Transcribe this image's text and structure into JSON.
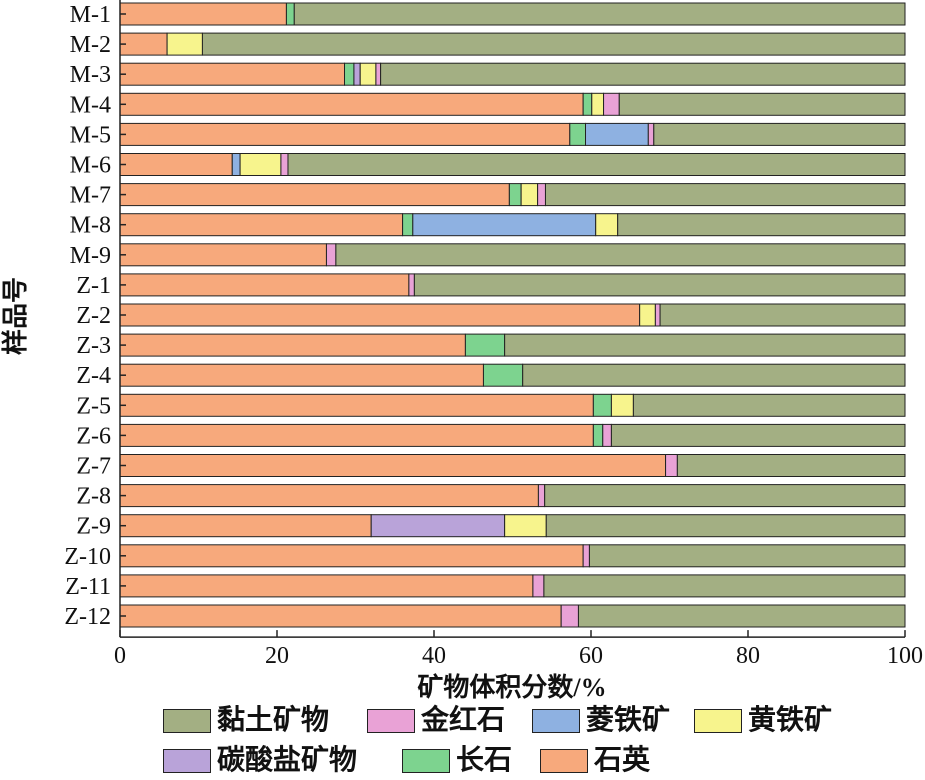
{
  "chart_data": {
    "type": "bar",
    "orientation": "horizontal",
    "stacked": true,
    "xlabel": "矿物体积分数/%",
    "ylabel": "样品号",
    "xlim": [
      0,
      100
    ],
    "xticks": [
      0,
      20,
      40,
      60,
      80,
      100
    ],
    "categories": [
      "M-1",
      "M-2",
      "M-3",
      "M-4",
      "M-5",
      "M-6",
      "M-7",
      "M-8",
      "M-9",
      "Z-1",
      "Z-2",
      "Z-3",
      "Z-4",
      "Z-5",
      "Z-6",
      "Z-7",
      "Z-8",
      "Z-9",
      "Z-10",
      "Z-11",
      "Z-12"
    ],
    "series": [
      {
        "name": "石英",
        "color": "#F7A97C",
        "values": [
          21.2,
          6.0,
          28.6,
          59.0,
          57.3,
          14.3,
          49.6,
          36.0,
          26.3,
          36.8,
          66.2,
          44.0,
          46.3,
          60.3,
          60.3,
          69.5,
          53.3,
          32.0,
          59.0,
          52.6,
          56.2
        ]
      },
      {
        "name": "长石",
        "color": "#7DD38F",
        "values": [
          1.0,
          0.0,
          1.2,
          1.1,
          2.0,
          0.0,
          1.5,
          1.3,
          0.0,
          0.0,
          0.0,
          5.0,
          5.0,
          2.3,
          1.2,
          0.0,
          0.0,
          0.0,
          0.0,
          0.0,
          0.0
        ]
      },
      {
        "name": "碳酸盐矿物",
        "color": "#B9A3D9",
        "values": [
          0.0,
          0.0,
          0.8,
          0.0,
          0.0,
          0.0,
          0.0,
          0.0,
          0.0,
          0.0,
          0.0,
          0.0,
          0.0,
          0.0,
          0.0,
          0.0,
          0.0,
          17.0,
          0.0,
          0.0,
          0.0
        ]
      },
      {
        "name": "菱铁矿",
        "color": "#8EB1E1",
        "values": [
          0.0,
          0.0,
          0.0,
          0.0,
          8.0,
          1.0,
          0.0,
          23.3,
          0.0,
          0.0,
          0.0,
          0.0,
          0.0,
          0.0,
          0.0,
          0.0,
          0.0,
          0.0,
          0.0,
          0.0,
          0.0
        ]
      },
      {
        "name": "黄铁矿",
        "color": "#F7F48D",
        "values": [
          0.0,
          4.5,
          2.0,
          1.5,
          0.0,
          5.2,
          2.1,
          2.8,
          0.0,
          0.0,
          2.0,
          0.0,
          0.0,
          2.8,
          0.0,
          0.0,
          0.0,
          5.3,
          0.0,
          0.0,
          0.0
        ]
      },
      {
        "name": "金红石",
        "color": "#E9A2D6",
        "values": [
          0.0,
          0.0,
          0.6,
          2.0,
          0.7,
          0.9,
          1.0,
          0.0,
          1.2,
          0.7,
          0.6,
          0.0,
          0.0,
          0.0,
          1.1,
          1.5,
          0.8,
          0.0,
          0.8,
          1.4,
          2.2
        ]
      },
      {
        "name": "黏土矿物",
        "color": "#A3AF83",
        "values": [
          77.8,
          89.5,
          66.8,
          36.4,
          32.0,
          78.6,
          45.8,
          36.6,
          72.5,
          62.5,
          31.2,
          51.0,
          48.7,
          34.6,
          37.4,
          29.0,
          45.9,
          45.7,
          40.2,
          46.0,
          41.6
        ]
      }
    ],
    "legend": {
      "placement": "bottom",
      "rows": [
        [
          "黏土矿物",
          "金红石",
          "菱铁矿",
          "黄铁矿"
        ],
        [
          "碳酸盐矿物",
          "长石",
          "石英"
        ]
      ]
    },
    "grid": false
  }
}
